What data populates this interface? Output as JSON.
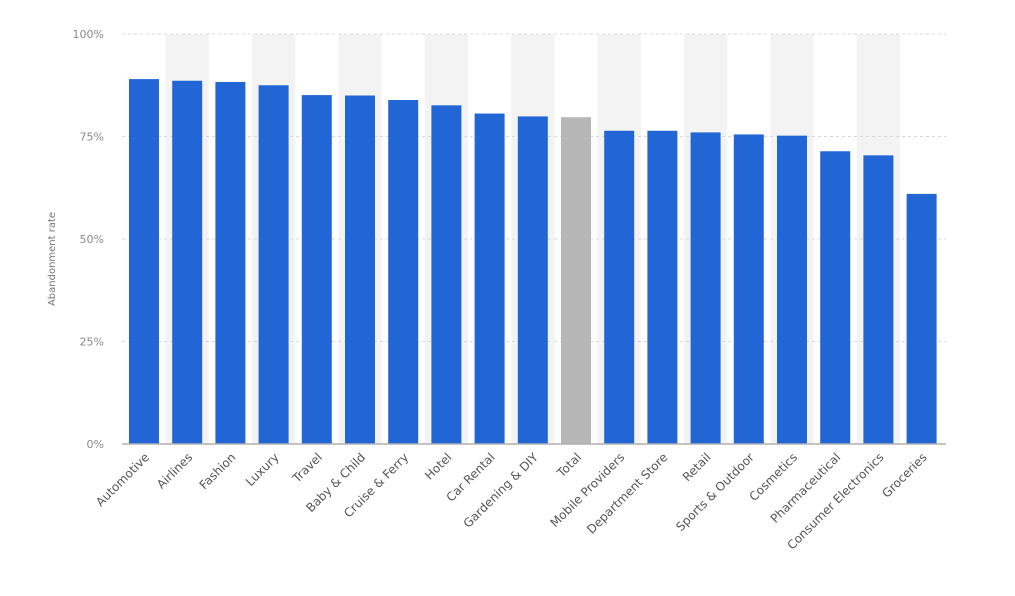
{
  "chart_data": {
    "type": "bar",
    "ylabel": "Abandonment rate",
    "xlabel": "",
    "ylim": [
      0,
      100
    ],
    "yticks": [
      0,
      25,
      50,
      75,
      100
    ],
    "ytick_labels": [
      "0%",
      "25%",
      "50%",
      "75%",
      "100%"
    ],
    "grid": true,
    "categories": [
      "Automotive",
      "Airlines",
      "Fashion",
      "Luxury",
      "Travel",
      "Baby & Child",
      "Cruise & Ferry",
      "Hotel",
      "Car Rental",
      "Gardening & DIY",
      "Total",
      "Mobile Providers",
      "Department Store",
      "Retail",
      "Sports & Outdoor",
      "Cosmetics",
      "Pharmaceutical",
      "Consumer Electronics",
      "Groceries"
    ],
    "values": [
      89,
      88.6,
      88.3,
      87.5,
      85.1,
      85,
      83.9,
      82.6,
      80.6,
      79.9,
      79.7,
      76.4,
      76.4,
      76,
      75.5,
      75.2,
      71.4,
      70.4,
      61
    ],
    "colors": {
      "default": "#2266d6",
      "highlight": "#b6b6b6",
      "band": "#f3f3f3"
    },
    "highlight_categories": [
      "Total"
    ]
  }
}
